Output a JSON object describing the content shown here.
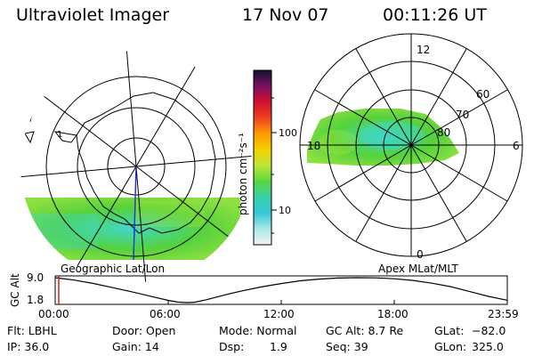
{
  "header": {
    "instrument": "Ultraviolet Imager",
    "date": "17 Nov 07",
    "time": "00:11:26 UT"
  },
  "colors": {
    "aurora_green": "#55d23c",
    "aurora_cyan": "#3ed8c8",
    "aurora_yellow": "#b8e83a",
    "timeline_marker": "#d02020"
  },
  "geo_map": {
    "label": "Geographic Lat/Lon",
    "pole_marker_label": "1"
  },
  "colorbar": {
    "unit": "photon cm⁻²s⁻¹",
    "ticks": [
      "100",
      "10"
    ],
    "scale": "log",
    "colors": [
      "#101030",
      "#7a1060",
      "#d01030",
      "#f04020",
      "#ff9a00",
      "#f6d000",
      "#bde83a",
      "#5ad83a",
      "#38d0a8",
      "#36c8d8",
      "#a8e8e8",
      "#f4f4f4"
    ]
  },
  "mag_map": {
    "label": "Apex MLat/MLT",
    "mlt_labels": {
      "top": "12",
      "right": "6",
      "bottom": "0",
      "left": "18"
    },
    "lat_labels": [
      "60",
      "70",
      "80"
    ]
  },
  "chart_data": {
    "type": "line",
    "ylabel": "GC Alt",
    "yticks": [
      "9.0",
      "1.8"
    ],
    "ylim": [
      1.8,
      9.0
    ],
    "xlabels": [
      "00:00",
      "06:00",
      "12:00",
      "18:00",
      "23:59"
    ],
    "xlim_hours": [
      0,
      24
    ],
    "current_time_hours": 0.19,
    "series": [
      {
        "x": [
          0,
          1,
          2,
          3,
          4,
          5,
          6,
          6.5,
          7,
          7.4,
          8,
          9,
          10,
          11,
          12,
          13,
          14,
          15,
          16,
          17,
          18,
          19,
          20,
          21,
          22,
          23,
          23.98
        ],
        "y": [
          9.0,
          8.3,
          7.35,
          6.2,
          5.0,
          3.7,
          2.45,
          1.95,
          1.8,
          1.9,
          2.6,
          4.0,
          5.3,
          6.4,
          7.3,
          8.1,
          8.6,
          8.9,
          9.0,
          8.95,
          8.7,
          8.2,
          7.4,
          6.4,
          5.0,
          3.6,
          2.5
        ]
      }
    ]
  },
  "status": {
    "filter": "Flt: LBHL",
    "door": "Door: Open",
    "mode": "Mode: Normal",
    "gc_alt": "GC Alt: 8.7 Re",
    "glat_label": "GLat:",
    "glat_value": "−82.0",
    "ip": "IP: 36.0",
    "gain": "Gain: 14",
    "dsp_label": "Dsp:",
    "dsp_value": "1.9",
    "seq": "Seq: 39",
    "glon_label": "GLon:",
    "glon_value": "325.0"
  }
}
